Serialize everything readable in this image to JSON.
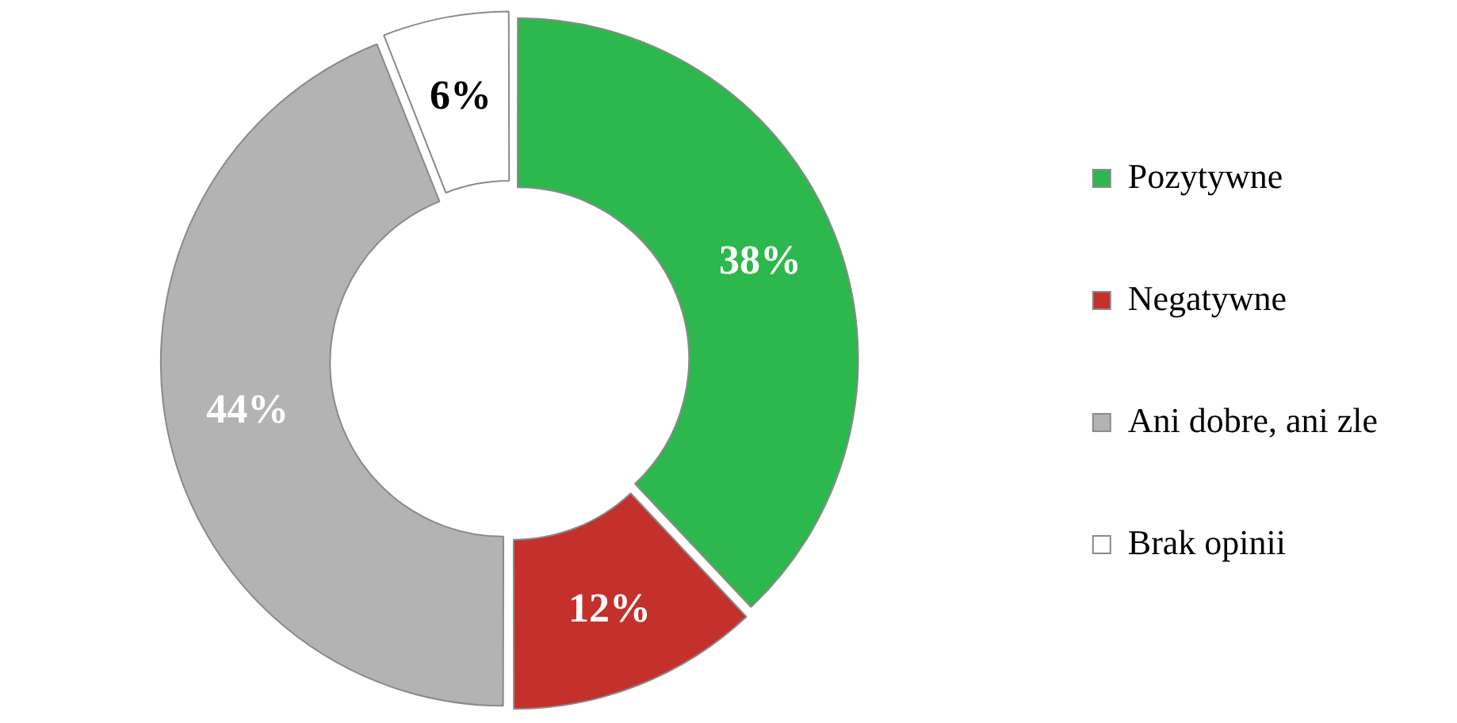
{
  "chart_data": {
    "type": "donut",
    "categories": [
      "Pozytywne",
      "Negatywne",
      "Ani dobre, ani zle",
      "Brak opinii"
    ],
    "values": [
      38,
      12,
      44,
      6
    ],
    "colors": [
      "#2db84d",
      "#c4302b",
      "#b3b3b3",
      "#ffffff"
    ],
    "value_labels": [
      "38%",
      "12%",
      "44%",
      "6%"
    ],
    "legend": "right"
  }
}
